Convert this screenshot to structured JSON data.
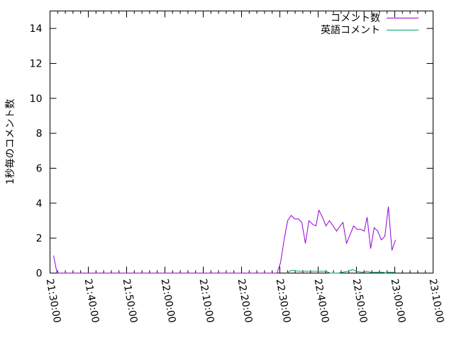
{
  "chart_data": {
    "type": "line",
    "title": "",
    "xlabel": "",
    "ylabel": "1秒毎のコメント数",
    "xlim": [
      "21:30:00",
      "23:10:00"
    ],
    "ylim": [
      0,
      15
    ],
    "xticks": [
      "21:30:00",
      "21:40:00",
      "21:50:00",
      "22:00:00",
      "22:10:00",
      "22:20:00",
      "22:30:00",
      "22:40:00",
      "22:50:00",
      "23:00:00",
      "23:10:00"
    ],
    "yticks": [
      "0",
      "2",
      "4",
      "6",
      "8",
      "10",
      "12",
      "14"
    ],
    "grid": false,
    "legend": "top-right",
    "series": [
      {
        "name": "コメント数",
        "color": "#9400d3",
        "points": [
          [
            "21:30:55",
            1.0
          ],
          [
            "21:31:50",
            0
          ],
          [
            "21:45:00",
            0
          ],
          [
            "22:00:00",
            0
          ],
          [
            "22:28:20",
            0
          ],
          [
            "22:29:16",
            0
          ],
          [
            "22:30:11",
            0.6
          ],
          [
            "22:31:07",
            1.9
          ],
          [
            "22:32:02",
            3.0
          ],
          [
            "22:32:58",
            3.3
          ],
          [
            "22:33:53",
            3.1
          ],
          [
            "22:34:49",
            3.1
          ],
          [
            "22:35:44",
            2.9
          ],
          [
            "22:36:40",
            1.7
          ],
          [
            "22:37:36",
            3.0
          ],
          [
            "22:38:31",
            2.8
          ],
          [
            "22:39:27",
            2.7
          ],
          [
            "22:40:11",
            3.6
          ],
          [
            "22:41:07",
            3.2
          ],
          [
            "22:42:02",
            2.7
          ],
          [
            "22:42:58",
            3.0
          ],
          [
            "22:43:53",
            2.7
          ],
          [
            "22:44:49",
            2.4
          ],
          [
            "22:45:44",
            2.7
          ],
          [
            "22:46:29",
            2.9
          ],
          [
            "22:47:24",
            1.7
          ],
          [
            "22:48:20",
            2.2
          ],
          [
            "22:49:16",
            2.7
          ],
          [
            "22:50:11",
            2.5
          ],
          [
            "22:51:07",
            2.5
          ],
          [
            "22:52:02",
            2.4
          ],
          [
            "22:52:47",
            3.2
          ],
          [
            "22:53:42",
            1.4
          ],
          [
            "22:54:38",
            2.6
          ],
          [
            "22:55:33",
            2.4
          ],
          [
            "22:56:29",
            1.9
          ],
          [
            "22:57:24",
            2.1
          ],
          [
            "22:58:20",
            3.8
          ],
          [
            "22:59:16",
            1.3
          ],
          [
            "23:00:11",
            1.9
          ]
        ]
      },
      {
        "name": "英語コメント",
        "color": "#009e73",
        "points": [
          [
            "22:31:50",
            0
          ],
          [
            "22:32:55",
            0.15
          ],
          [
            "22:33:50",
            0.15
          ],
          [
            "22:34:45",
            0.1
          ],
          [
            "22:39:25",
            0.1
          ],
          [
            "22:42:10",
            0.1
          ],
          [
            "22:43:05",
            0
          ],
          [
            "22:45:20",
            0
          ],
          [
            "22:46:25",
            0.05
          ],
          [
            "22:47:40",
            0.1
          ],
          [
            "22:49:00",
            0.2
          ],
          [
            "22:49:55",
            0.1
          ],
          [
            "22:51:25",
            0.05
          ],
          [
            "22:52:45",
            0.1
          ],
          [
            "22:53:40",
            0.05
          ],
          [
            "22:57:00",
            0.05
          ],
          [
            "22:57:35",
            0
          ],
          [
            "22:58:20",
            0.05
          ],
          [
            "23:00:10",
            0.05
          ]
        ]
      }
    ]
  }
}
